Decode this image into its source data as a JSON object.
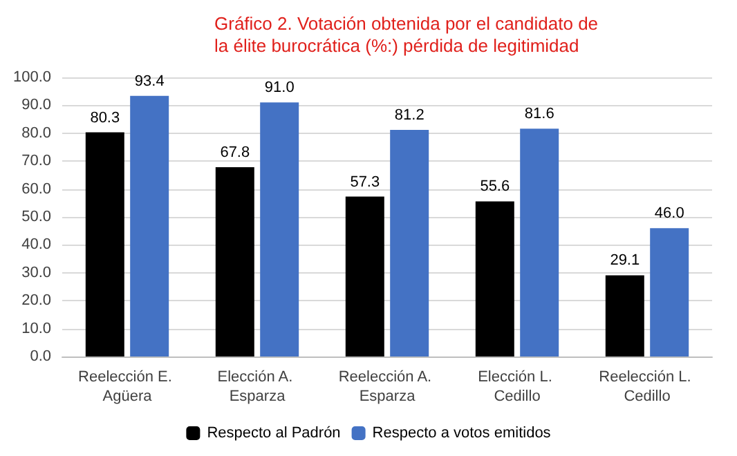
{
  "chart_data": {
    "type": "bar",
    "title": "Gráfico 2. Votación obtenida por el candidato de la élite burocrática (%:) pérdida de legitimidad",
    "categories": [
      "Reelección E. Agüera",
      "Elección A. Esparza",
      "Reelección A. Esparza",
      "Elección L. Cedillo",
      "Reelección L. Cedillo"
    ],
    "series": [
      {
        "name": "Respecto al Padrón",
        "color": "#000000",
        "values": [
          80.3,
          67.8,
          57.3,
          55.6,
          29.1
        ],
        "value_labels": [
          "80.3",
          "67.8",
          "57.3",
          "55.6",
          "29.1"
        ]
      },
      {
        "name": "Respecto a votos emitidos",
        "color": "#4472c4",
        "values": [
          93.4,
          91.0,
          81.2,
          81.6,
          46.0
        ],
        "value_labels": [
          "93.4",
          "91.0",
          "81.2",
          "81.6",
          "46.0"
        ]
      }
    ],
    "ylim": [
      0,
      100
    ],
    "yticks": [
      {
        "value": 0,
        "label": "0.0"
      },
      {
        "value": 10,
        "label": "10.0"
      },
      {
        "value": 20,
        "label": "20.0"
      },
      {
        "value": 30,
        "label": "30.0"
      },
      {
        "value": 40,
        "label": "40.0"
      },
      {
        "value": 50,
        "label": "50.0"
      },
      {
        "value": 60,
        "label": "60.0"
      },
      {
        "value": 70,
        "label": "70.0"
      },
      {
        "value": 80,
        "label": "80.0"
      },
      {
        "value": 90,
        "label": "90.0"
      },
      {
        "value": 100,
        "label": "100.0"
      }
    ],
    "grid": "y",
    "legend": "bottom"
  }
}
